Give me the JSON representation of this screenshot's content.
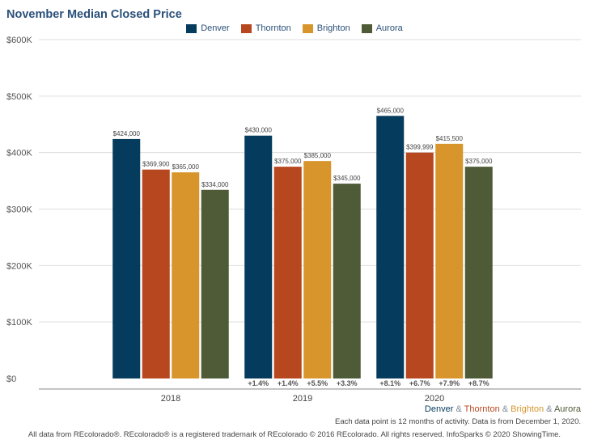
{
  "title": "November Median Closed Price",
  "legend": [
    {
      "name": "Denver",
      "color": "#053b5c"
    },
    {
      "name": "Thornton",
      "color": "#b7471f"
    },
    {
      "name": "Brighton",
      "color": "#d7952b"
    },
    {
      "name": "Aurora",
      "color": "#4f5b37"
    }
  ],
  "chart_data": {
    "type": "bar",
    "title": "November Median Closed Price",
    "categories": [
      "2018",
      "2019",
      "2020"
    ],
    "series": [
      {
        "name": "Denver",
        "color": "#053b5c",
        "values": [
          424000,
          430000,
          465000
        ],
        "labels": [
          "$424,000",
          "$430,000",
          "$465,000"
        ]
      },
      {
        "name": "Thornton",
        "color": "#b7471f",
        "values": [
          369900,
          375000,
          399999
        ],
        "labels": [
          "$369,900",
          "$375,000",
          "$399,999"
        ]
      },
      {
        "name": "Brighton",
        "color": "#d7952b",
        "values": [
          365000,
          385000,
          415500
        ],
        "labels": [
          "$365,000",
          "$385,000",
          "$415,500"
        ]
      },
      {
        "name": "Aurora",
        "color": "#4f5b37",
        "values": [
          334000,
          345000,
          375000
        ],
        "labels": [
          "$334,000",
          "$345,000",
          "$375,000"
        ]
      }
    ],
    "changes": {
      "2019": [
        "+1.4%",
        "+1.4%",
        "+5.5%",
        "+3.3%"
      ],
      "2020": [
        "+8.1%",
        "+6.7%",
        "+7.9%",
        "+8.7%"
      ]
    },
    "ylim": [
      0,
      600000
    ],
    "yticks": [
      0,
      100000,
      200000,
      300000,
      400000,
      500000,
      600000
    ],
    "ytick_labels": [
      "$0",
      "$100K",
      "$200K",
      "$300K",
      "$400K",
      "$500K",
      "$600K"
    ],
    "grid": true,
    "legend_position": "top-center"
  },
  "footer": {
    "cities": [
      {
        "name": "Denver",
        "color": "#053b5c"
      },
      {
        "name": "Thornton",
        "color": "#b7471f"
      },
      {
        "name": "Brighton",
        "color": "#d7952b"
      },
      {
        "name": "Aurora",
        "color": "#4f5b37"
      }
    ],
    "separator": "&",
    "note": "Each data point is 12 months of activity. Data is from December 1, 2020.",
    "copyright": "All data from REcolorado®. REcolorado® is a registered trademark of REcolorado © 2016 REcolorado. All rights reserved. InfoSparks © 2020 ShowingTime."
  }
}
